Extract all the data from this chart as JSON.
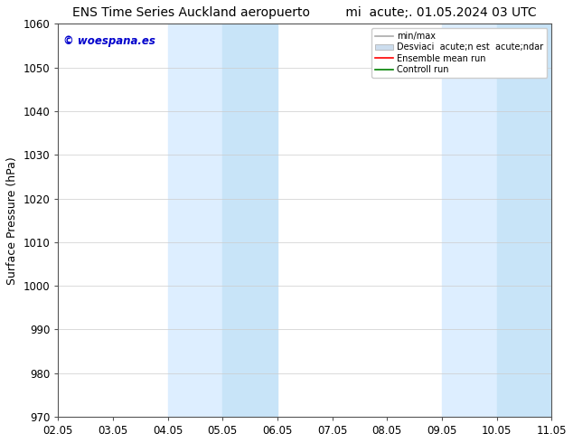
{
  "title": "ENS Time Series Auckland aeropuerto         mi  acute;. 01.05.2024 03 UTC",
  "ylabel": "Surface Pressure (hPa)",
  "ylim": [
    970,
    1060
  ],
  "yticks": [
    970,
    980,
    990,
    1000,
    1010,
    1020,
    1030,
    1040,
    1050,
    1060
  ],
  "xtick_labels": [
    "02.05",
    "03.05",
    "04.05",
    "05.05",
    "06.05",
    "07.05",
    "08.05",
    "09.05",
    "10.05",
    "11.05"
  ],
  "xlim_min": 0,
  "xlim_max": 9,
  "shaded_regions": [
    {
      "xstart": 2.0,
      "xend": 3.0
    },
    {
      "xstart": 3.0,
      "xend": 4.0
    },
    {
      "xstart": 7.0,
      "xend": 8.0
    },
    {
      "xstart": 8.0,
      "xend": 9.0
    }
  ],
  "shaded_colors": [
    "#ddeeff",
    "#c8e4f8",
    "#ddeeff",
    "#c8e4f8"
  ],
  "watermark_text": "© woespana.es",
  "watermark_color": "#0000cc",
  "bg_color": "#ffffff",
  "plot_bg_color": "#ffffff",
  "legend_labels": [
    "min/max",
    "Desviaci  acute;n est  acute;ndar",
    "Ensemble mean run",
    "Controll run"
  ],
  "legend_colors": [
    "#aaaaaa",
    "#ccddee",
    "#ff0000",
    "#008000"
  ],
  "title_fontsize": 10,
  "axis_label_fontsize": 9,
  "tick_fontsize": 8.5,
  "watermark_fontsize": 8.5
}
